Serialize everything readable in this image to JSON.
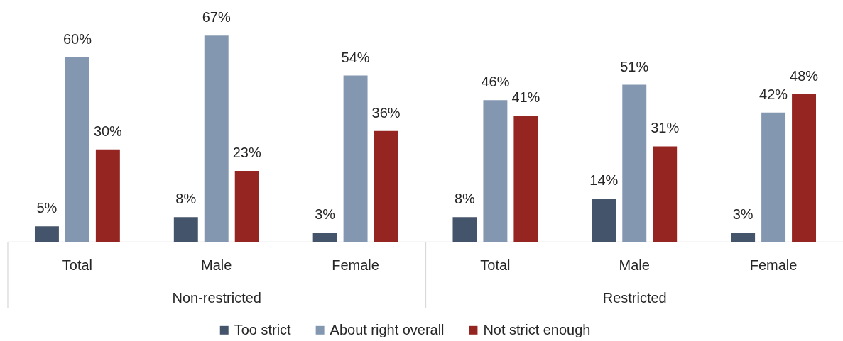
{
  "chart_data": [
    {
      "type": "bar",
      "categories": [
        "Total",
        "Male",
        "Female"
      ],
      "xlabel": "Non-restricted",
      "tick_labels": "x",
      "legend": "bottom",
      "series": [
        {
          "name": "Too strict",
          "color": "#44546a",
          "values": [
            5,
            8,
            3
          ],
          "value_labels": [
            "5%",
            "8%",
            "3%"
          ]
        },
        {
          "name": "About right overall",
          "color": "#8497b0",
          "values": [
            60,
            67,
            54
          ],
          "value_labels": [
            "60%",
            "67%",
            "54%"
          ]
        },
        {
          "name": "Not strict enough",
          "color": "#952520",
          "values": [
            30,
            23,
            36
          ],
          "value_labels": [
            "30%",
            "23%",
            "36%"
          ]
        }
      ]
    },
    {
      "type": "bar",
      "categories": [
        "Total",
        "Male",
        "Female"
      ],
      "xlabel": "Restricted",
      "tick_labels": "x",
      "legend": "bottom",
      "series": [
        {
          "name": "Too strict",
          "color": "#44546a",
          "values": [
            8,
            14,
            3
          ],
          "value_labels": [
            "8%",
            "14%",
            "3%"
          ]
        },
        {
          "name": "About right overall",
          "color": "#8497b0",
          "values": [
            46,
            51,
            42
          ],
          "value_labels": [
            "46%",
            "51%",
            "42%"
          ]
        },
        {
          "name": "Not strict enough",
          "color": "#952520",
          "values": [
            41,
            31,
            48
          ],
          "value_labels": [
            "41%",
            "31%",
            "48%"
          ]
        }
      ]
    }
  ]
}
